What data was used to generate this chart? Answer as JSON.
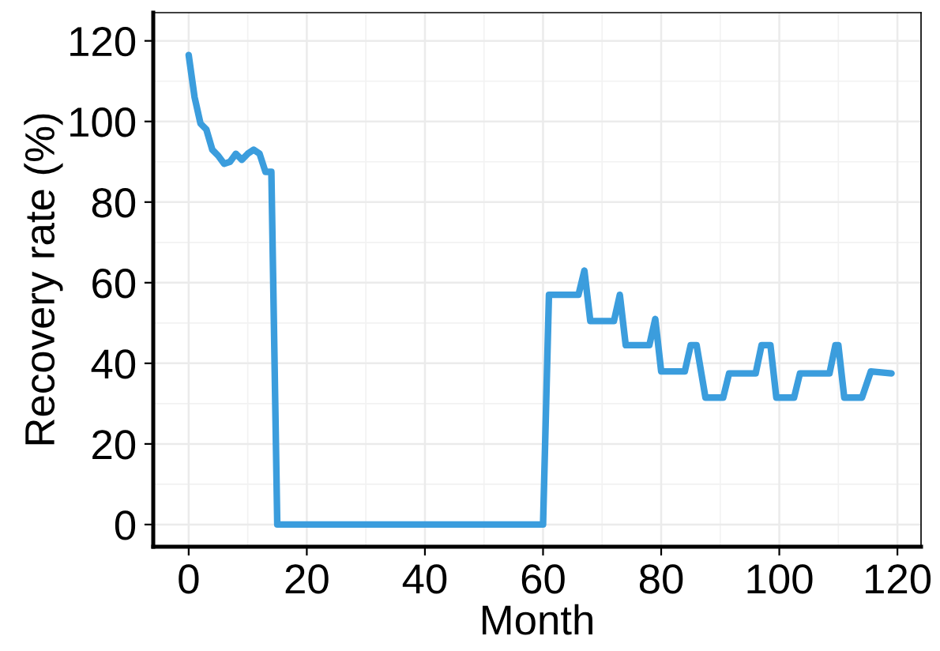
{
  "chart_data": {
    "type": "line",
    "xlabel": "Month",
    "ylabel": "Recovery rate (%)",
    "xlim": [
      -6,
      124
    ],
    "ylim": [
      -5.5,
      127
    ],
    "xticks": [
      0,
      20,
      40,
      60,
      80,
      100,
      120
    ],
    "yticks": [
      0,
      20,
      40,
      60,
      80,
      100,
      120
    ],
    "grid": true,
    "series": [
      {
        "color": "#3b9ddd",
        "x": [
          0,
          1,
          2,
          3,
          4,
          5,
          6,
          7,
          8,
          9,
          10,
          11,
          12,
          13,
          14,
          15,
          60,
          61,
          66,
          67,
          68,
          72,
          73,
          74,
          78,
          79,
          80,
          84,
          85,
          86,
          87.5,
          90.5,
          91.5,
          96,
          97,
          98.5,
          99.5,
          102.5,
          103.5,
          108.5,
          109.5,
          110,
          111,
          114,
          115.5,
          119
        ],
        "values": [
          116.5,
          106,
          99.5,
          98,
          93,
          91.5,
          89.5,
          90,
          92,
          90.5,
          92,
          93,
          92,
          87.5,
          87.5,
          0,
          0,
          57,
          57,
          63,
          50.5,
          50.5,
          57,
          44.5,
          44.5,
          51,
          38,
          38,
          44.5,
          44.5,
          31.5,
          31.5,
          37.5,
          37.5,
          44.5,
          44.5,
          31.5,
          31.5,
          37.5,
          37.5,
          44.5,
          44.5,
          31.5,
          31.5,
          38,
          37.5
        ]
      }
    ]
  }
}
